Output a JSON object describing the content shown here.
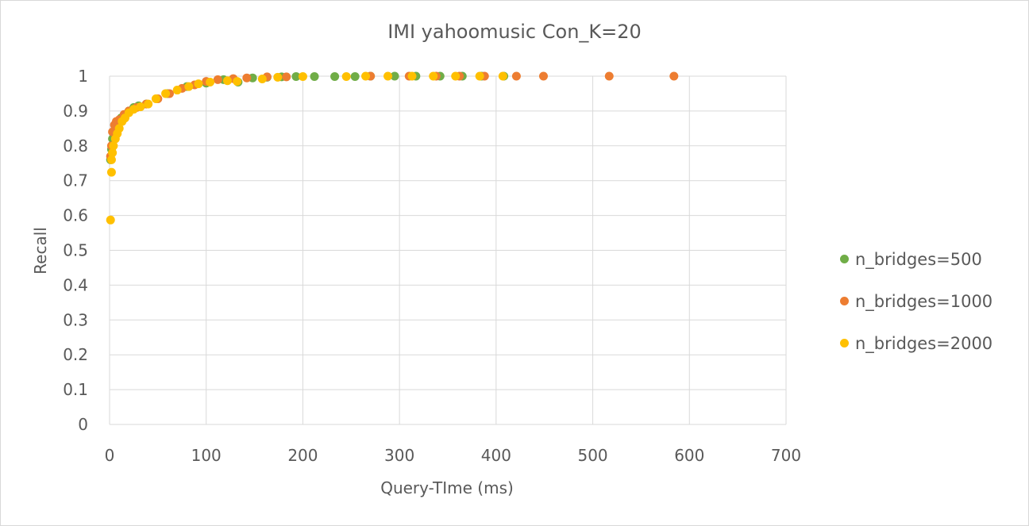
{
  "chart_data": {
    "type": "scatter",
    "title": "IMI yahoomusic Con_K=20",
    "xlabel": "Query-TIme (ms)",
    "ylabel": "Recall",
    "xlim": [
      0,
      700
    ],
    "ylim": [
      0,
      1
    ],
    "x_ticks": [
      "0",
      "100",
      "200",
      "300",
      "400",
      "500",
      "600",
      "700"
    ],
    "y_ticks": [
      "0",
      "0.1",
      "0.2",
      "0.3",
      "0.4",
      "0.5",
      "0.6",
      "0.7",
      "0.8",
      "0.9",
      "1"
    ],
    "grid": true,
    "legend_position": "right",
    "series": [
      {
        "name": "n_bridges=500",
        "color": "#70ad47",
        "points": [
          [
            1,
            0.76
          ],
          [
            2,
            0.79
          ],
          [
            3,
            0.82
          ],
          [
            5,
            0.84
          ],
          [
            8,
            0.86
          ],
          [
            12,
            0.88
          ],
          [
            16,
            0.89
          ],
          [
            20,
            0.9
          ],
          [
            25,
            0.91
          ],
          [
            30,
            0.915
          ],
          [
            38,
            0.92
          ],
          [
            60,
            0.95
          ],
          [
            80,
            0.97
          ],
          [
            100,
            0.98
          ],
          [
            118,
            0.99
          ],
          [
            133,
            0.983
          ],
          [
            148,
            0.995
          ],
          [
            163,
            0.997
          ],
          [
            178,
            0.998
          ],
          [
            193,
            0.999
          ],
          [
            212,
            0.999
          ],
          [
            233,
            0.999
          ],
          [
            254,
            0.999
          ],
          [
            270,
            1.0
          ],
          [
            295,
            1.0
          ],
          [
            317,
            1.0
          ],
          [
            342,
            1.0
          ],
          [
            365,
            1.0
          ],
          [
            385,
            1.0
          ],
          [
            408,
            1.0
          ]
        ]
      },
      {
        "name": "n_bridges=1000",
        "color": "#ed7d31",
        "points": [
          [
            1,
            0.77
          ],
          [
            2,
            0.8
          ],
          [
            3,
            0.84
          ],
          [
            5,
            0.86
          ],
          [
            7,
            0.87
          ],
          [
            10,
            0.875
          ],
          [
            15,
            0.89
          ],
          [
            20,
            0.9
          ],
          [
            28,
            0.91
          ],
          [
            38,
            0.92
          ],
          [
            50,
            0.935
          ],
          [
            62,
            0.95
          ],
          [
            75,
            0.965
          ],
          [
            88,
            0.975
          ],
          [
            100,
            0.985
          ],
          [
            112,
            0.99
          ],
          [
            128,
            0.993
          ],
          [
            142,
            0.995
          ],
          [
            163,
            0.998
          ],
          [
            183,
            0.998
          ],
          [
            270,
            1.0
          ],
          [
            310,
            1.0
          ],
          [
            338,
            1.0
          ],
          [
            362,
            1.0
          ],
          [
            388,
            1.0
          ],
          [
            421,
            1.0
          ],
          [
            449,
            1.0
          ],
          [
            517,
            1.0
          ],
          [
            584,
            1.0
          ]
        ]
      },
      {
        "name": "n_bridges=2000",
        "color": "#ffc000",
        "points": [
          [
            1,
            0.587
          ],
          [
            2,
            0.724
          ],
          [
            2,
            0.76
          ],
          [
            3,
            0.78
          ],
          [
            4,
            0.8
          ],
          [
            6,
            0.82
          ],
          [
            8,
            0.835
          ],
          [
            10,
            0.85
          ],
          [
            13,
            0.87
          ],
          [
            16,
            0.88
          ],
          [
            20,
            0.895
          ],
          [
            25,
            0.905
          ],
          [
            32,
            0.912
          ],
          [
            40,
            0.92
          ],
          [
            48,
            0.935
          ],
          [
            58,
            0.95
          ],
          [
            70,
            0.96
          ],
          [
            82,
            0.97
          ],
          [
            92,
            0.978
          ],
          [
            104,
            0.983
          ],
          [
            122,
            0.987
          ],
          [
            132,
            0.985
          ],
          [
            158,
            0.992
          ],
          [
            174,
            0.997
          ],
          [
            200,
            0.999
          ],
          [
            245,
            0.999
          ],
          [
            265,
            1.0
          ],
          [
            288,
            1.0
          ],
          [
            313,
            1.0
          ],
          [
            335,
            1.0
          ],
          [
            358,
            1.0
          ],
          [
            383,
            1.0
          ],
          [
            407,
            1.0
          ]
        ]
      }
    ]
  }
}
